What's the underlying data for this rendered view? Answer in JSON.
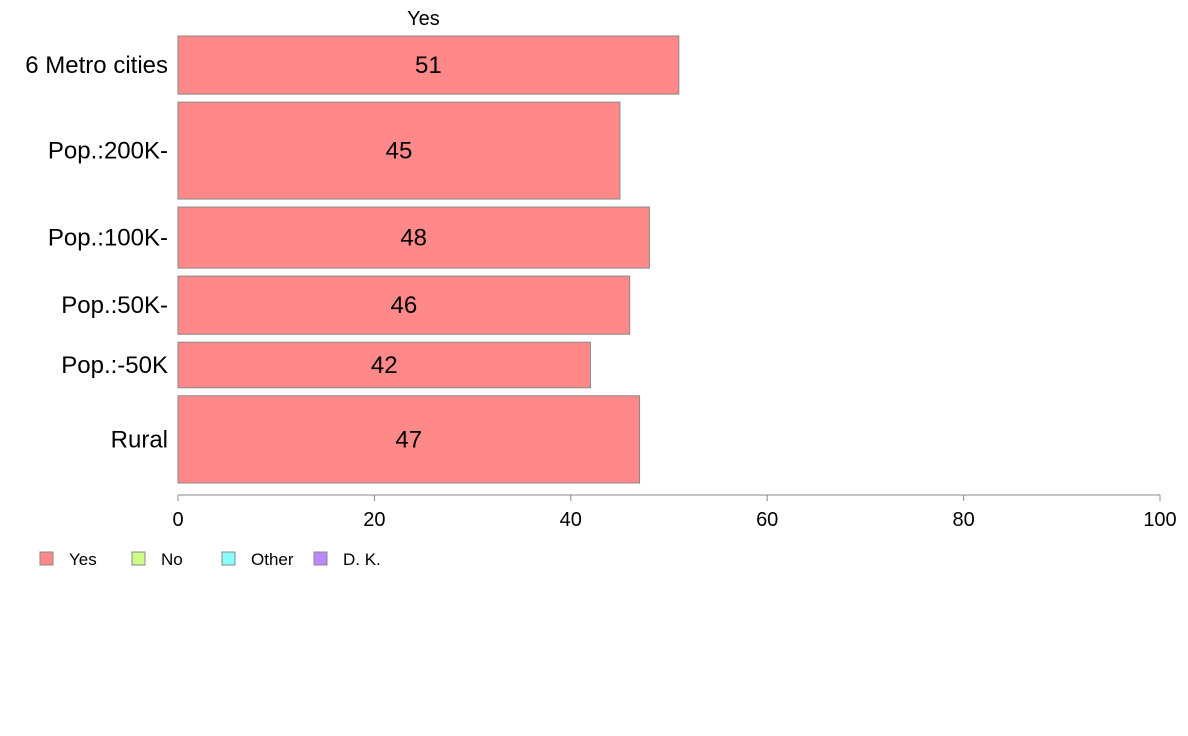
{
  "chart_data": {
    "type": "bar",
    "orientation": "horizontal",
    "title": "Yes",
    "categories": [
      "6 Metro cities",
      "Pop.:200K-",
      "Pop.:100K-",
      "Pop.:50K-",
      "Pop.:-50K",
      "Rural"
    ],
    "series": [
      {
        "name": "Yes",
        "values": [
          51,
          45,
          48,
          46,
          42,
          47
        ],
        "color": "#ff8888"
      }
    ],
    "bar_widths_relative": [
      0.6,
      1.0,
      0.63,
      0.6,
      0.47,
      0.9
    ],
    "xlim": [
      0,
      100
    ],
    "xticks": [
      "0",
      "20",
      "40",
      "60",
      "80",
      "100"
    ],
    "xlabel": "",
    "ylabel": "",
    "grid": false,
    "legend": {
      "placement": "bottom-left",
      "entries": [
        {
          "label": "Yes",
          "color": "#ff8888"
        },
        {
          "label": "No",
          "color": "#ccff88"
        },
        {
          "label": "Other",
          "color": "#88ffff"
        },
        {
          "label": "D. K.",
          "color": "#bb88ff"
        }
      ]
    }
  }
}
